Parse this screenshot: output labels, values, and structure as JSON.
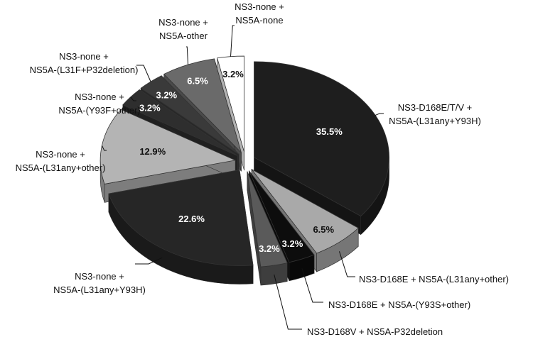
{
  "chart_data": {
    "type": "pie3d",
    "categories": [
      [
        "NS3-D168E/T/V +",
        "NS5A-(L31any+Y93H)"
      ],
      [
        "NS3-D168E + NS5A-(L31any+other)"
      ],
      [
        "NS3-D168E + NS5A-(Y93S+other)"
      ],
      [
        "NS3-D168V + NS5A-P32deletion"
      ],
      [
        "NS3-none +",
        "NS5A-(L31any+Y93H)"
      ],
      [
        "NS3-none +",
        "NS5A-(L31any+other)"
      ],
      [
        "NS3-none +",
        "NS5A-(Y93F+other)"
      ],
      [
        "NS3-none +",
        "NS5A-(L31F+P32deletion)"
      ],
      [
        "NS3-none +",
        "NS5A-other"
      ],
      [
        "NS3-none +",
        "NS5A-none"
      ]
    ],
    "values": [
      35.5,
      6.5,
      3.2,
      3.2,
      22.6,
      12.9,
      3.2,
      3.2,
      6.5,
      3.2
    ],
    "value_labels": [
      "35.5%",
      "6.5%",
      "3.2%",
      "3.2%",
      "22.6%",
      "12.9%",
      "3.2%",
      "3.2%",
      "6.5%",
      "3.2%"
    ],
    "colors": [
      "#1e1e1e",
      "#a9a9a9",
      "#0d0d0d",
      "#5a5a5a",
      "#262626",
      "#b4b4b4",
      "#2e2e2e",
      "#3a3a3a",
      "#6a6a6a",
      "#ffffff"
    ]
  }
}
